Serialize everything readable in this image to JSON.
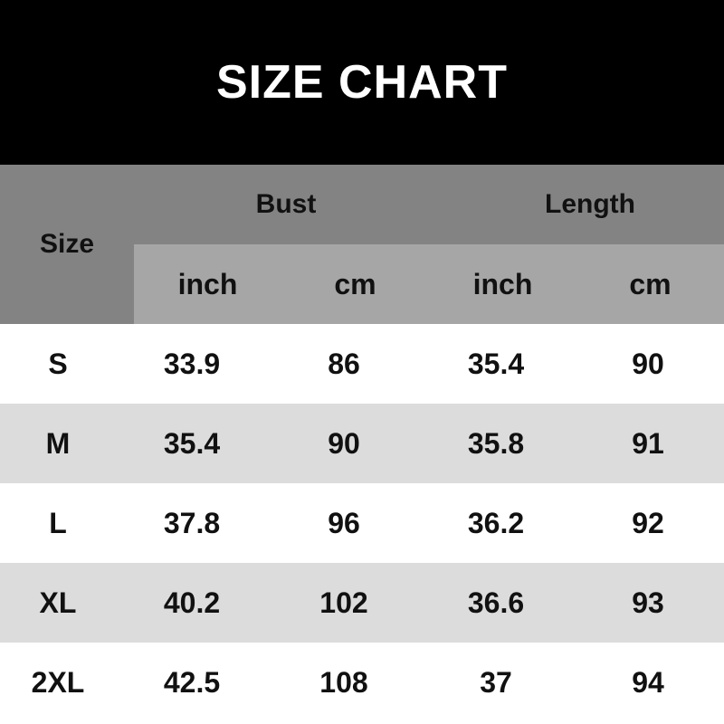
{
  "title": "SIZE CHART",
  "header": {
    "size": "Size",
    "groups": [
      "Bust",
      "Length"
    ],
    "units": [
      "inch",
      "cm",
      "inch",
      "cm"
    ]
  },
  "rows": [
    [
      "S",
      "33.9",
      "86",
      "35.4",
      "90"
    ],
    [
      "M",
      "35.4",
      "90",
      "35.8",
      "91"
    ],
    [
      "L",
      "37.8",
      "96",
      "36.2",
      "92"
    ],
    [
      "XL",
      "40.2",
      "102",
      "36.6",
      "93"
    ],
    [
      "2XL",
      "42.5",
      "108",
      "37",
      "94"
    ]
  ],
  "colors": {
    "title_bg": "#000000",
    "header_bg": "#838383",
    "subheader_bg": "#a6a6a6",
    "alt_row_bg": "#dcdcdc"
  }
}
